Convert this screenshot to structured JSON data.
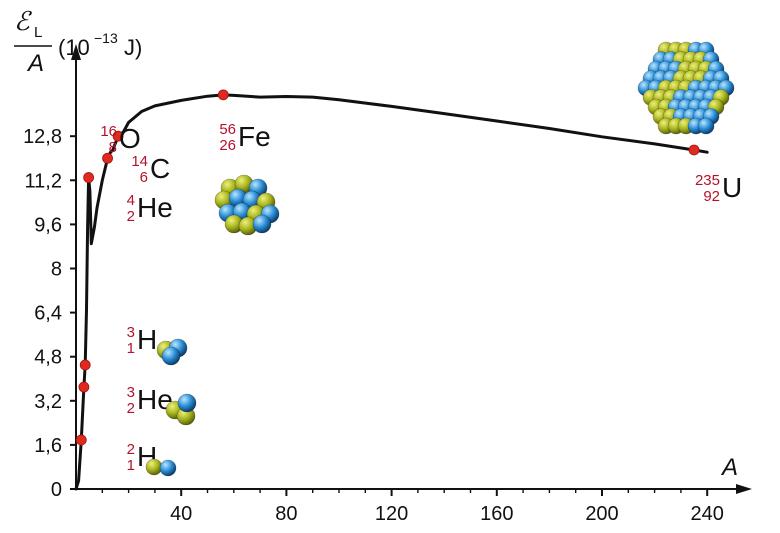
{
  "chart_data": {
    "type": "line",
    "ylabel_symbol": "ℰ",
    "ylabel_subscript": "L",
    "ylabel_denominator": "A",
    "ylabel_unit_prefix": "(10",
    "ylabel_unit_exponent": "−13",
    "ylabel_unit_suffix": " J)",
    "xlabel": "A",
    "xlim": [
      0,
      245
    ],
    "ylim": [
      0,
      14.8
    ],
    "x_ticks": [
      "40",
      "80",
      "120",
      "160",
      "200",
      "240"
    ],
    "x_tick_values": [
      40,
      80,
      120,
      160,
      200,
      240
    ],
    "y_ticks": [
      "0",
      "1,6",
      "3,2",
      "4,8",
      "6,4",
      "8",
      "9,6",
      "11,2",
      "12,8"
    ],
    "y_tick_values": [
      0,
      1.6,
      3.2,
      4.8,
      6.4,
      8,
      9.6,
      11.2,
      12.8
    ],
    "curve": [
      [
        0,
        0
      ],
      [
        1,
        0.3
      ],
      [
        2,
        1.78
      ],
      [
        3,
        3.7
      ],
      [
        3.5,
        4.5
      ],
      [
        4,
        6.5
      ],
      [
        4.4,
        9.5
      ],
      [
        4.8,
        11.3
      ],
      [
        5.3,
        10.8
      ],
      [
        5.8,
        8.9
      ],
      [
        7,
        9.5
      ],
      [
        8,
        10.2
      ],
      [
        10,
        11.2
      ],
      [
        12,
        12.0
      ],
      [
        13,
        12.2
      ],
      [
        14,
        12.3
      ],
      [
        16,
        12.8
      ],
      [
        18,
        12.95
      ],
      [
        20,
        13.3
      ],
      [
        25,
        13.7
      ],
      [
        30,
        13.9
      ],
      [
        40,
        14.1
      ],
      [
        50,
        14.25
      ],
      [
        56,
        14.3
      ],
      [
        60,
        14.28
      ],
      [
        70,
        14.22
      ],
      [
        80,
        14.24
      ],
      [
        90,
        14.22
      ],
      [
        100,
        14.12
      ],
      [
        120,
        13.88
      ],
      [
        140,
        13.62
      ],
      [
        160,
        13.35
      ],
      [
        180,
        13.08
      ],
      [
        200,
        12.78
      ],
      [
        220,
        12.52
      ],
      [
        235,
        12.3
      ],
      [
        240,
        12.22
      ]
    ],
    "points": [
      {
        "x": 2,
        "y": 1.78,
        "mass": "2",
        "atomic": "1",
        "symbol": "H"
      },
      {
        "x": 3,
        "y": 3.7,
        "mass": "3",
        "atomic": "2",
        "symbol": "He"
      },
      {
        "x": 3.5,
        "y": 4.5,
        "mass": "3",
        "atomic": "1",
        "symbol": "H"
      },
      {
        "x": 4.8,
        "y": 11.3,
        "mass": "4",
        "atomic": "2",
        "symbol": "He"
      },
      {
        "x": 12,
        "y": 12.0,
        "mass": "14",
        "atomic": "6",
        "symbol": "C"
      },
      {
        "x": 16,
        "y": 12.8,
        "mass": "16",
        "atomic": "8",
        "symbol": "O"
      },
      {
        "x": 56,
        "y": 14.3,
        "mass": "56",
        "atomic": "26",
        "symbol": "Fe"
      },
      {
        "x": 235,
        "y": 12.3,
        "mass": "235",
        "atomic": "92",
        "symbol": "U"
      }
    ]
  },
  "colors": {
    "curve": "#111111",
    "point": "#e0291f",
    "nucleus_number": "#b3132b",
    "proton": "#a9b520",
    "neutron": "#2b8ed6"
  }
}
